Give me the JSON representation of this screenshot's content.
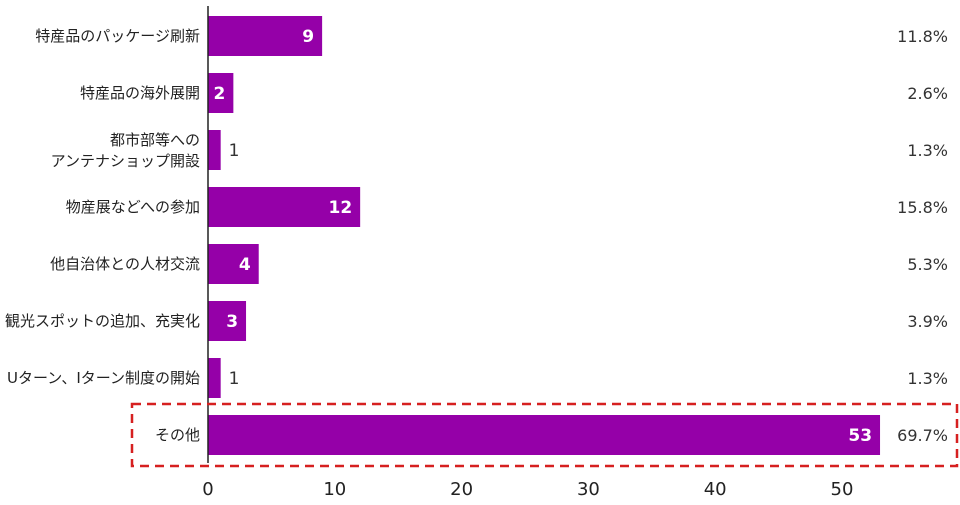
{
  "chart_data": {
    "type": "bar",
    "orientation": "horizontal",
    "categories": [
      [
        "特産品のパッケージ刷新"
      ],
      [
        "特産品の海外展開"
      ],
      [
        "都市部等への",
        "アンテナショップ開設"
      ],
      [
        "物産展などへの参加"
      ],
      [
        "他自治体との人材交流"
      ],
      [
        "観光スポットの追加、充実化"
      ],
      [
        "Uターン、Iターン制度の開始"
      ],
      [
        "その他"
      ]
    ],
    "values": [
      9,
      2,
      1,
      12,
      4,
      3,
      1,
      53
    ],
    "value_labels": [
      "9",
      "2",
      "1",
      "12",
      "4",
      "3",
      "1",
      "53"
    ],
    "percentages": [
      "11.8%",
      "2.6%",
      "1.3%",
      "15.8%",
      "5.3%",
      "3.9%",
      "1.3%",
      "69.7%"
    ],
    "xlim": [
      0,
      55
    ],
    "xticks": [
      0,
      10,
      20,
      30,
      40,
      50
    ],
    "xtick_labels": [
      "0",
      "10",
      "20",
      "30",
      "40",
      "50"
    ],
    "highlighted_category_index": 7,
    "grid": false,
    "colors": {
      "bar": "#9500a8",
      "highlight_border": "#d62020",
      "axis": "#222222"
    }
  }
}
